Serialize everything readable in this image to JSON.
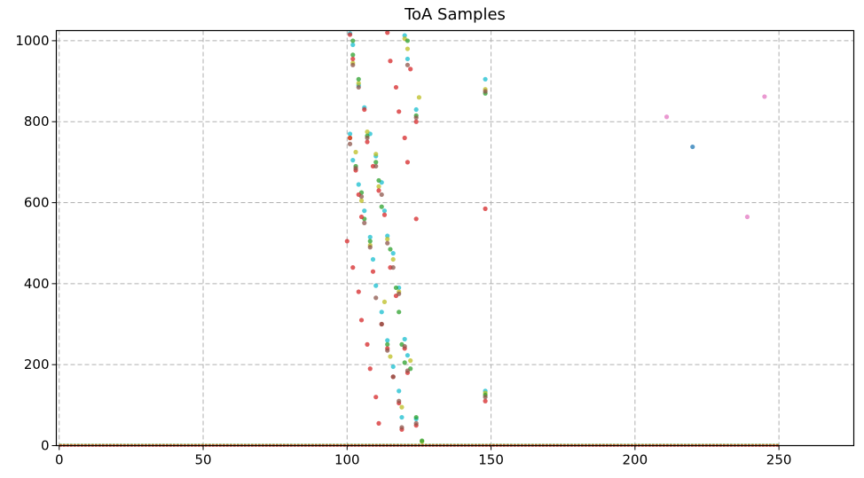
{
  "chart_data": {
    "type": "scatter",
    "title": "ToA Samples",
    "xlabel": "",
    "ylabel": "",
    "xlim": [
      -1,
      276
    ],
    "ylim": [
      0,
      1025
    ],
    "xticks": [
      0,
      50,
      100,
      150,
      200,
      250
    ],
    "yticks": [
      0,
      200,
      400,
      600,
      800,
      1000
    ],
    "grid": true,
    "legend": "none",
    "colors": [
      "#1f77b4",
      "#ff7f0e",
      "#2ca02c",
      "#d62728",
      "#9467bd",
      "#8c564b",
      "#e377c2",
      "#7f7f7f",
      "#bcbd22",
      "#17becf"
    ],
    "baseline": {
      "x_from": 0,
      "x_to": 250,
      "y": 1
    },
    "series": [
      {
        "color": "#17becf",
        "points": [
          [
            101,
            1018
          ],
          [
            101,
            770
          ],
          [
            102,
            990
          ],
          [
            102,
            705
          ],
          [
            104,
            890
          ],
          [
            104,
            645
          ],
          [
            106,
            835
          ],
          [
            106,
            580
          ],
          [
            108,
            515
          ],
          [
            108,
            770
          ],
          [
            109,
            460
          ],
          [
            110,
            395
          ],
          [
            110,
            715
          ],
          [
            112,
            650
          ],
          [
            112,
            330
          ],
          [
            113,
            580
          ],
          [
            114,
            518
          ],
          [
            114,
            260
          ],
          [
            116,
            475
          ],
          [
            116,
            195
          ],
          [
            118,
            390
          ],
          [
            118,
            135
          ],
          [
            119,
            70
          ],
          [
            120,
            1013
          ],
          [
            120,
            263
          ],
          [
            121,
            955
          ],
          [
            121,
            223
          ],
          [
            124,
            830
          ],
          [
            124,
            66
          ],
          [
            148,
            905
          ],
          [
            148,
            135
          ]
        ]
      },
      {
        "color": "#bcbd22",
        "points": [
          [
            101,
            760
          ],
          [
            102,
            945
          ],
          [
            103,
            725
          ],
          [
            104,
            895
          ],
          [
            105,
            605
          ],
          [
            107,
            775
          ],
          [
            108,
            495
          ],
          [
            110,
            720
          ],
          [
            111,
            640
          ],
          [
            113,
            355
          ],
          [
            114,
            510
          ],
          [
            115,
            220
          ],
          [
            116,
            460
          ],
          [
            118,
            380
          ],
          [
            119,
            95
          ],
          [
            120,
            1005
          ],
          [
            121,
            980
          ],
          [
            122,
            210
          ],
          [
            125,
            860
          ],
          [
            126,
            10
          ],
          [
            148,
            880
          ],
          [
            148,
            130
          ]
        ]
      },
      {
        "color": "#2ca02c",
        "points": [
          [
            102,
            1000
          ],
          [
            102,
            965
          ],
          [
            103,
            690
          ],
          [
            104,
            905
          ],
          [
            105,
            625
          ],
          [
            106,
            560
          ],
          [
            107,
            765
          ],
          [
            108,
            505
          ],
          [
            110,
            700
          ],
          [
            111,
            655
          ],
          [
            112,
            590
          ],
          [
            114,
            250
          ],
          [
            115,
            485
          ],
          [
            117,
            390
          ],
          [
            118,
            330
          ],
          [
            119,
            250
          ],
          [
            120,
            205
          ],
          [
            121,
            1000
          ],
          [
            122,
            190
          ],
          [
            124,
            815
          ],
          [
            124,
            70
          ],
          [
            126,
            12
          ],
          [
            148,
            870
          ],
          [
            148,
            125
          ]
        ]
      },
      {
        "color": "#d62728",
        "points": [
          [
            100,
            505
          ],
          [
            101,
            1015
          ],
          [
            101,
            760
          ],
          [
            102,
            955
          ],
          [
            102,
            440
          ],
          [
            103,
            680
          ],
          [
            104,
            380
          ],
          [
            104,
            620
          ],
          [
            105,
            310
          ],
          [
            105,
            565
          ],
          [
            106,
            830
          ],
          [
            107,
            250
          ],
          [
            107,
            750
          ],
          [
            108,
            190
          ],
          [
            109,
            430
          ],
          [
            109,
            690
          ],
          [
            110,
            120
          ],
          [
            111,
            630
          ],
          [
            111,
            55
          ],
          [
            112,
            300
          ],
          [
            113,
            570
          ],
          [
            114,
            1020
          ],
          [
            114,
            240
          ],
          [
            115,
            950
          ],
          [
            115,
            440
          ],
          [
            116,
            170
          ],
          [
            117,
            885
          ],
          [
            117,
            370
          ],
          [
            118,
            105
          ],
          [
            118,
            825
          ],
          [
            119,
            40
          ],
          [
            120,
            760
          ],
          [
            120,
            240
          ],
          [
            121,
            700
          ],
          [
            121,
            180
          ],
          [
            122,
            930
          ],
          [
            124,
            800
          ],
          [
            124,
            560
          ],
          [
            124,
            50
          ],
          [
            148,
            585
          ],
          [
            148,
            110
          ]
        ]
      },
      {
        "color": "#8c564b",
        "points": [
          [
            101,
            745
          ],
          [
            102,
            940
          ],
          [
            103,
            685
          ],
          [
            104,
            885
          ],
          [
            105,
            615
          ],
          [
            106,
            550
          ],
          [
            107,
            760
          ],
          [
            108,
            490
          ],
          [
            110,
            690
          ],
          [
            110,
            365
          ],
          [
            112,
            620
          ],
          [
            112,
            300
          ],
          [
            114,
            500
          ],
          [
            114,
            235
          ],
          [
            116,
            440
          ],
          [
            116,
            170
          ],
          [
            118,
            375
          ],
          [
            118,
            110
          ],
          [
            119,
            45
          ],
          [
            120,
            245
          ],
          [
            121,
            940
          ],
          [
            121,
            185
          ],
          [
            124,
            810
          ],
          [
            124,
            55
          ],
          [
            148,
            875
          ],
          [
            148,
            120
          ]
        ]
      },
      {
        "color": "#e377c2",
        "points": [
          [
            211,
            812
          ],
          [
            239,
            565
          ],
          [
            245,
            862
          ]
        ]
      },
      {
        "color": "#1f77b4",
        "points": [
          [
            220,
            738
          ]
        ]
      }
    ]
  }
}
